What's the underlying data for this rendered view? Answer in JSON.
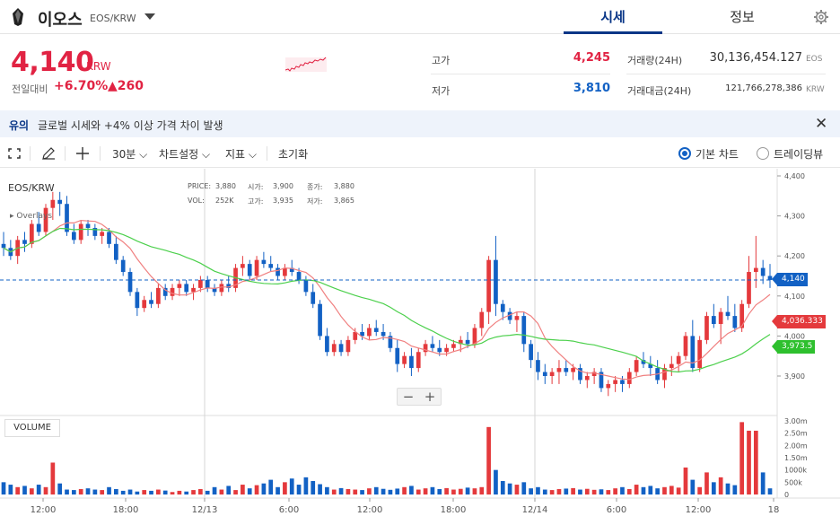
{
  "header": {
    "coin_name": "이오스",
    "pair": "EOS/KRW",
    "tabs": [
      {
        "label": "시세",
        "active": true
      },
      {
        "label": "정보",
        "active": false
      }
    ]
  },
  "ticker": {
    "price": "4,140",
    "unit": "KRW",
    "change_label": "전일대비",
    "change_rate": "+6.70%",
    "change_amount": "▲260",
    "high_label": "고가",
    "high": "4,245",
    "low_label": "저가",
    "low": "3,810",
    "volume_label": "거래량(24H)",
    "volume": "30,136,454.127",
    "volume_unit": "EOS",
    "value_label": "거래대금(24H)",
    "value": "121,766,278,386",
    "value_unit": "KRW"
  },
  "notice": {
    "tag": "유의",
    "text": "글로벌 시세와 +4% 이상 가격 차이 발생",
    "close": "✕"
  },
  "toolbar": {
    "interval": "30분",
    "chart_settings": "차트설정",
    "indicators": "지표",
    "reset": "초기화",
    "basic_chart": "기본 차트",
    "trading_view": "트레이딩뷰"
  },
  "chart_data": {
    "type": "candlestick",
    "symbol": "EOS/KRW",
    "overlays_label": "Overlays",
    "legend": {
      "price_label": "PRICE:",
      "price": "3,880",
      "open_label": "시가:",
      "open": "3,900",
      "close_label": "종가:",
      "close": "3,880",
      "vol_label": "VOL:",
      "vol": "252K",
      "high_label": "고가:",
      "high": "3,935",
      "low_label": "저가:",
      "low": "3,865"
    },
    "y_ticks": [
      "4,400",
      "4,300",
      "4,200",
      "4,100",
      "4,000",
      "3,900"
    ],
    "ylim": [
      3850,
      4400
    ],
    "x_ticks": [
      "12:00",
      "18:00",
      "12/13",
      "6:00",
      "12:00",
      "18:00",
      "12/14",
      "6:00",
      "12:00",
      "18"
    ],
    "vol_ticks": [
      "3.00m",
      "2.50m",
      "2.00m",
      "1.50m",
      "1000k",
      "500k",
      "0"
    ],
    "vol_ylim": [
      0,
      3000000
    ],
    "current_price": "4,140",
    "ma_badges": [
      {
        "label": "4,036.333",
        "color": "#e4393c"
      },
      {
        "label": "3,973.5",
        "color": "#2ec02e"
      }
    ],
    "volume_panel_label": "VOLUME",
    "colors": {
      "up": "#e4393c",
      "down": "#1261c4",
      "ma_fast": "#f08080",
      "ma_slow": "#4cd04c",
      "current_line": "#1261c4"
    },
    "candles": [
      [
        4230,
        4260,
        4200,
        4220
      ],
      [
        4220,
        4240,
        4190,
        4200
      ],
      [
        4200,
        4250,
        4180,
        4240
      ],
      [
        4240,
        4260,
        4210,
        4230
      ],
      [
        4230,
        4290,
        4220,
        4280
      ],
      [
        4280,
        4310,
        4250,
        4260
      ],
      [
        4260,
        4330,
        4250,
        4320
      ],
      [
        4320,
        4360,
        4290,
        4340
      ],
      [
        4340,
        4360,
        4300,
        4330
      ],
      [
        4330,
        4350,
        4250,
        4260
      ],
      [
        4260,
        4280,
        4230,
        4240
      ],
      [
        4240,
        4290,
        4230,
        4280
      ],
      [
        4280,
        4290,
        4250,
        4270
      ],
      [
        4270,
        4280,
        4240,
        4250
      ],
      [
        4250,
        4270,
        4230,
        4260
      ],
      [
        4260,
        4270,
        4220,
        4230
      ],
      [
        4230,
        4250,
        4180,
        4190
      ],
      [
        4190,
        4200,
        4150,
        4160
      ],
      [
        4160,
        4170,
        4100,
        4110
      ],
      [
        4110,
        4120,
        4050,
        4070
      ],
      [
        4070,
        4100,
        4060,
        4090
      ],
      [
        4090,
        4110,
        4070,
        4080
      ],
      [
        4080,
        4130,
        4070,
        4120
      ],
      [
        4120,
        4130,
        4090,
        4100
      ],
      [
        4100,
        4130,
        4090,
        4120
      ],
      [
        4120,
        4140,
        4100,
        4130
      ],
      [
        4130,
        4140,
        4100,
        4110
      ],
      [
        4110,
        4130,
        4090,
        4120
      ],
      [
        4120,
        4150,
        4110,
        4140
      ],
      [
        4140,
        4150,
        4110,
        4120
      ],
      [
        4120,
        4130,
        4100,
        4110
      ],
      [
        4110,
        4140,
        4100,
        4130
      ],
      [
        4130,
        4150,
        4110,
        4120
      ],
      [
        4120,
        4180,
        4110,
        4170
      ],
      [
        4170,
        4200,
        4150,
        4180
      ],
      [
        4180,
        4190,
        4140,
        4150
      ],
      [
        4150,
        4200,
        4140,
        4190
      ],
      [
        4190,
        4210,
        4170,
        4180
      ],
      [
        4180,
        4200,
        4160,
        4170
      ],
      [
        4170,
        4180,
        4140,
        4150
      ],
      [
        4150,
        4180,
        4140,
        4170
      ],
      [
        4170,
        4190,
        4150,
        4160
      ],
      [
        4160,
        4170,
        4130,
        4140
      ],
      [
        4140,
        4150,
        4100,
        4110
      ],
      [
        4110,
        4130,
        4070,
        4080
      ],
      [
        4080,
        4090,
        3990,
        4000
      ],
      [
        4000,
        4020,
        3950,
        3960
      ],
      [
        3960,
        3990,
        3950,
        3980
      ],
      [
        3980,
        3990,
        3950,
        3960
      ],
      [
        3960,
        4000,
        3950,
        3990
      ],
      [
        3990,
        4020,
        3980,
        4010
      ],
      [
        4010,
        4030,
        3990,
        4000
      ],
      [
        4000,
        4030,
        3990,
        4020
      ],
      [
        4020,
        4040,
        4000,
        4010
      ],
      [
        4010,
        4030,
        3990,
        4000
      ],
      [
        4000,
        4010,
        3960,
        3970
      ],
      [
        3970,
        3990,
        3910,
        3930
      ],
      [
        3930,
        3960,
        3920,
        3950
      ],
      [
        3950,
        3970,
        3900,
        3920
      ],
      [
        3920,
        3970,
        3910,
        3960
      ],
      [
        3960,
        3990,
        3950,
        3980
      ],
      [
        3980,
        4000,
        3960,
        3970
      ],
      [
        3970,
        3990,
        3950,
        3960
      ],
      [
        3960,
        3980,
        3950,
        3970
      ],
      [
        3970,
        3990,
        3960,
        3980
      ],
      [
        3980,
        4000,
        3960,
        3990
      ],
      [
        3990,
        4010,
        3970,
        3980
      ],
      [
        3980,
        4030,
        3970,
        4020
      ],
      [
        4020,
        4070,
        4000,
        4060
      ],
      [
        4060,
        4200,
        4030,
        4190
      ],
      [
        4190,
        4250,
        4050,
        4080
      ],
      [
        4080,
        4090,
        4040,
        4060
      ],
      [
        4060,
        4070,
        4030,
        4040
      ],
      [
        4040,
        4060,
        4010,
        4050
      ],
      [
        4050,
        4060,
        3960,
        3980
      ],
      [
        3980,
        3990,
        3920,
        3940
      ],
      [
        3940,
        3960,
        3890,
        3910
      ],
      [
        3910,
        3930,
        3880,
        3900
      ],
      [
        3900,
        3920,
        3880,
        3910
      ],
      [
        3910,
        3940,
        3880,
        3920
      ],
      [
        3920,
        3940,
        3900,
        3910
      ],
      [
        3910,
        3930,
        3890,
        3920
      ],
      [
        3920,
        3930,
        3880,
        3890
      ],
      [
        3890,
        3910,
        3870,
        3900
      ],
      [
        3900,
        3920,
        3880,
        3910
      ],
      [
        3910,
        3920,
        3860,
        3870
      ],
      [
        3870,
        3890,
        3850,
        3880
      ],
      [
        3880,
        3900,
        3860,
        3890
      ],
      [
        3890,
        3900,
        3860,
        3880
      ],
      [
        3880,
        3920,
        3870,
        3910
      ],
      [
        3910,
        3950,
        3900,
        3940
      ],
      [
        3940,
        3960,
        3920,
        3930
      ],
      [
        3930,
        3950,
        3900,
        3920
      ],
      [
        3920,
        3940,
        3880,
        3890
      ],
      [
        3890,
        3930,
        3870,
        3920
      ],
      [
        3920,
        3950,
        3900,
        3930
      ],
      [
        3930,
        3960,
        3910,
        3950
      ],
      [
        3950,
        4010,
        3940,
        4000
      ],
      [
        4000,
        4040,
        3910,
        3920
      ],
      [
        3920,
        4000,
        3910,
        3990
      ],
      [
        3990,
        4060,
        3980,
        4050
      ],
      [
        4050,
        4080,
        4020,
        4030
      ],
      [
        4030,
        4070,
        3980,
        4060
      ],
      [
        4060,
        4100,
        4040,
        4050
      ],
      [
        4050,
        4080,
        4010,
        4020
      ],
      [
        4020,
        4090,
        4010,
        4080
      ],
      [
        4080,
        4200,
        4070,
        4160
      ],
      [
        4160,
        4250,
        4120,
        4170
      ],
      [
        4170,
        4190,
        4130,
        4150
      ],
      [
        4150,
        4180,
        4120,
        4140
      ]
    ],
    "volumes": [
      500000,
      400000,
      300000,
      350000,
      250000,
      400000,
      300000,
      1300000,
      450000,
      200000,
      180000,
      220000,
      250000,
      200000,
      180000,
      300000,
      220000,
      150000,
      200000,
      120000,
      180000,
      150000,
      200000,
      160000,
      100000,
      150000,
      120000,
      180000,
      220000,
      150000,
      300000,
      200000,
      350000,
      180000,
      400000,
      250000,
      380000,
      450000,
      600000,
      300000,
      500000,
      650000,
      400000,
      700000,
      550000,
      420000,
      300000,
      200000,
      260000,
      220000,
      200000,
      180000,
      250000,
      300000,
      230000,
      190000,
      240000,
      300000,
      350000,
      200000,
      250000,
      300000,
      220000,
      260000,
      200000,
      230000,
      280000,
      250000,
      300000,
      2750000,
      1000000,
      550000,
      450000,
      400000,
      500000,
      250000,
      300000,
      200000,
      180000,
      220000,
      240000,
      260000,
      200000,
      230000,
      190000,
      210000,
      180000,
      250000,
      300000,
      220000,
      400000,
      300000,
      350000,
      250000,
      300000,
      350000,
      280000,
      1100000,
      600000,
      300000,
      900000,
      500000,
      700000,
      450000,
      380000,
      2950000,
      2600000,
      2600000,
      900000,
      250000
    ]
  }
}
